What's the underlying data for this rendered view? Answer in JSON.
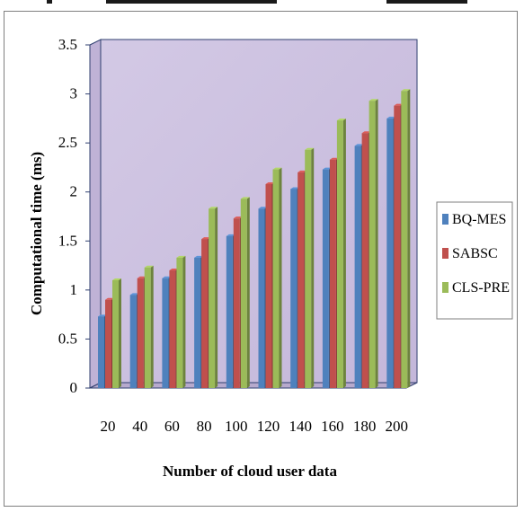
{
  "chart_data": {
    "type": "bar",
    "title": "",
    "xlabel": "Number of cloud user data",
    "ylabel": "Computational time (ms)",
    "ylim": [
      0,
      3.5
    ],
    "yticks": [
      "0",
      "0.5",
      "1",
      "1.5",
      "2",
      "2.5",
      "3",
      "3.5"
    ],
    "categories": [
      "20",
      "40",
      "60",
      "80",
      "100",
      "120",
      "140",
      "160",
      "180",
      "200"
    ],
    "series": [
      {
        "name": "BQ-MES",
        "color": "#4f81bd",
        "values": [
          0.73,
          0.95,
          1.12,
          1.33,
          1.55,
          1.83,
          2.03,
          2.23,
          2.47,
          2.75
        ]
      },
      {
        "name": "SABSC",
        "color": "#c0504d",
        "values": [
          0.9,
          1.12,
          1.2,
          1.52,
          1.73,
          2.08,
          2.2,
          2.33,
          2.6,
          2.88
        ]
      },
      {
        "name": "CLS-PRE",
        "color": "#9bbb59",
        "values": [
          1.1,
          1.23,
          1.33,
          1.83,
          1.93,
          2.23,
          2.43,
          2.73,
          2.93,
          3.03
        ]
      }
    ],
    "legend_position": "right",
    "plot_background": "#cdc2e0",
    "grid": false
  }
}
